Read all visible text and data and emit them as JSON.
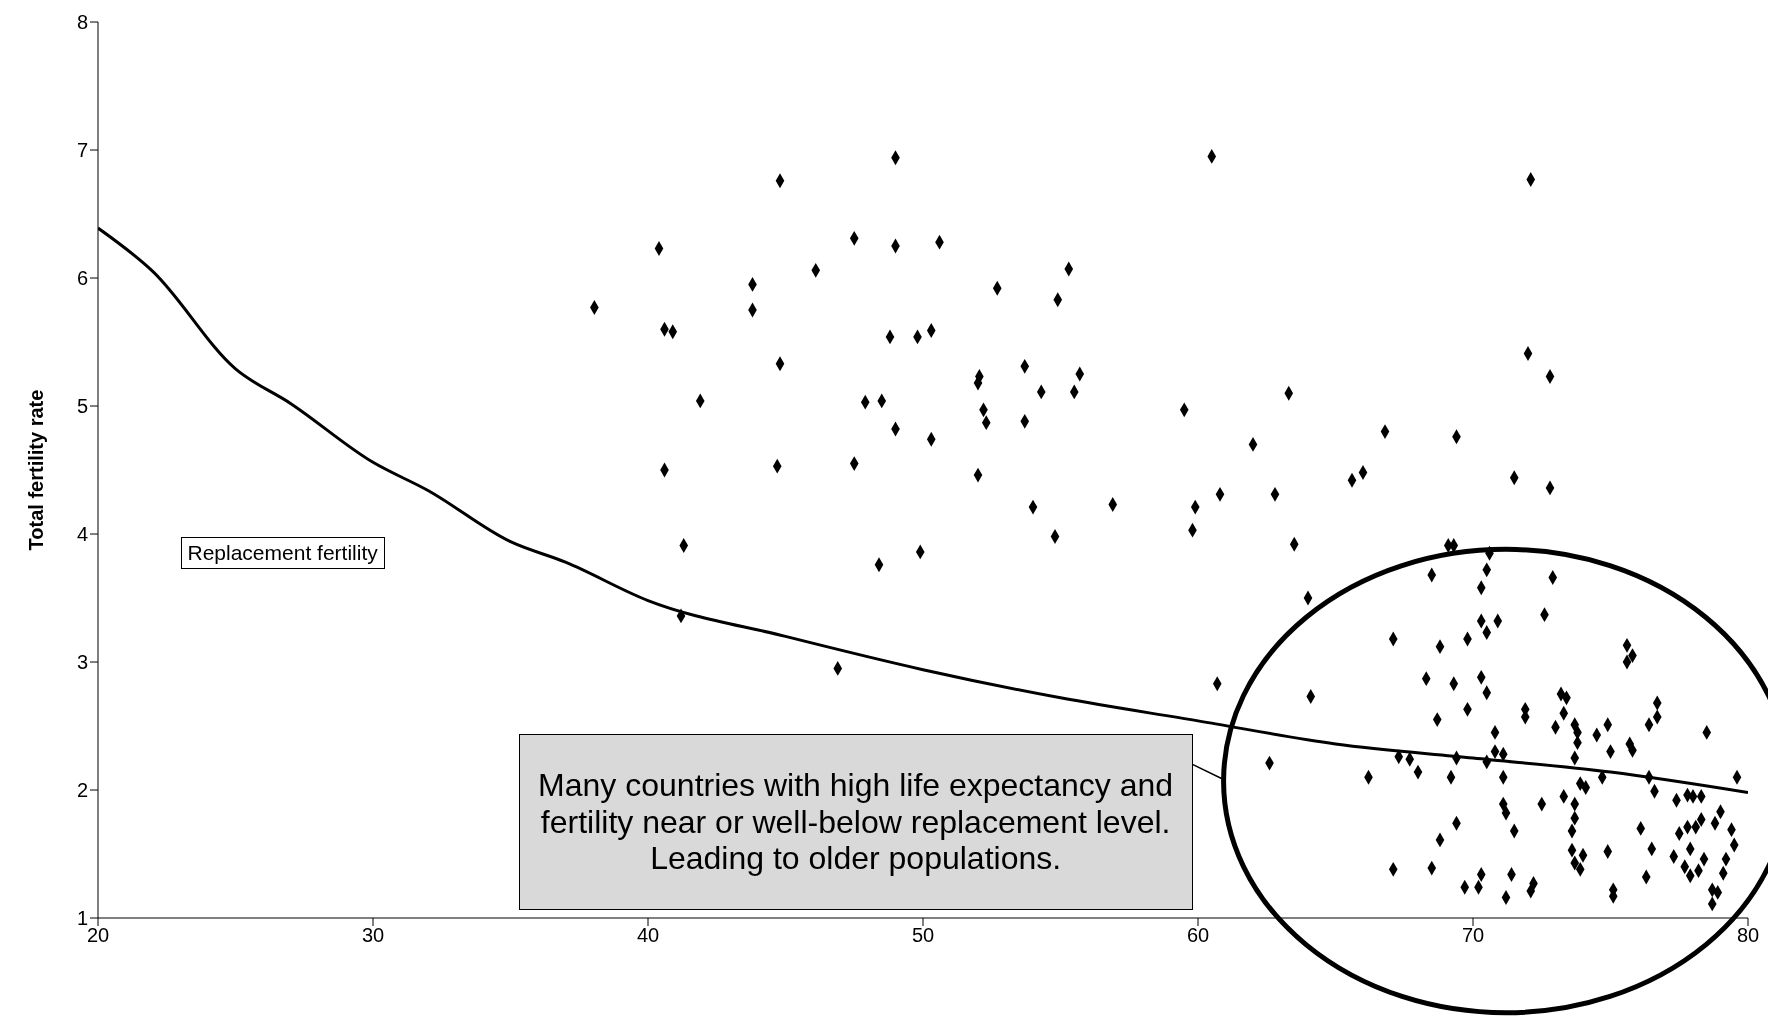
{
  "chart_data": {
    "type": "scatter",
    "ylabel": "Total fertility rate",
    "xlim": [
      20,
      80
    ],
    "xticks": [
      20,
      30,
      40,
      50,
      60,
      70,
      80
    ],
    "ylim": [
      1,
      8
    ],
    "yticks": [
      1,
      2,
      3,
      4,
      5,
      6,
      7,
      8
    ],
    "grid": false,
    "legend": false,
    "annotations": [
      "Many countries with high life expectancy and fertility near or well-below replacement level.  Leading to older populations."
    ],
    "series": [
      {
        "marker": "diamond",
        "color": "#000000",
        "x": [
          38.05,
          40.4,
          40.6,
          40.9,
          40.6,
          41.3,
          41.2,
          41.9,
          43.8,
          43.8,
          44.8,
          44.8,
          44.7,
          46.1,
          47.5,
          47.9,
          48.5,
          47.5,
          48.4,
          49.0,
          49.0,
          48.8,
          49.8,
          50.3,
          49.0,
          50.3,
          50.6,
          49.9,
          46.9,
          52.7,
          52.0,
          52.05,
          52.2,
          52.3,
          52.0,
          53.7,
          53.7,
          54.3,
          54.0,
          55.3,
          54.9,
          55.7,
          55.5,
          54.8,
          56.9,
          60.5,
          59.5,
          59.9,
          59.8,
          60.8,
          60.7,
          62.0,
          62.8,
          63.3,
          63.5,
          64.0,
          62.6,
          64.1,
          65.6,
          66.0,
          66.8,
          66.2,
          72.1,
          72.0,
          72.8,
          71.5,
          72.8,
          69.4,
          72.9,
          72.6,
          69.1,
          69.3,
          70.6,
          68.5,
          70.5,
          70.3,
          67.1,
          70.3,
          70.9,
          69.8,
          70.5,
          68.8,
          75.6,
          75.8,
          75.6,
          68.3,
          69.3,
          70.3,
          70.5,
          69.8,
          68.7,
          73.2,
          73.4,
          71.9,
          71.9,
          73.3,
          73.0,
          73.7,
          73.8,
          73.8,
          74.5,
          74.9,
          76.7,
          76.7,
          76.4,
          78.5,
          75.7,
          75.8,
          75.0,
          73.7,
          70.8,
          70.8,
          71.1,
          67.3,
          67.7,
          68.0,
          69.4,
          69.2,
          70.5,
          71.1,
          73.9,
          74.1,
          74.7,
          76.4,
          76.6,
          79.6,
          73.3,
          73.7,
          72.5,
          77.4,
          77.8,
          78.0,
          78.3,
          79.0,
          71.1,
          71.2,
          73.7,
          78.3,
          78.1,
          77.8,
          77.5,
          78.8,
          79.4,
          76.1,
          71.5,
          69.4,
          68.8,
          73.6,
          79.5,
          77.9,
          76.5,
          74.9,
          73.6,
          74.0,
          73.7,
          73.9,
          77.3,
          78.4,
          79.2,
          77.7,
          77.9,
          78.2,
          79.1,
          67.1,
          68.5,
          70.3,
          71.4,
          72.2,
          72.1,
          69.7,
          70.2,
          71.2,
          75.1,
          75.1,
          76.3,
          78.7,
          78.9,
          78.7
        ],
        "values": [
          5.77,
          6.23,
          5.6,
          5.58,
          4.5,
          3.91,
          3.36,
          5.04,
          5.95,
          5.75,
          6.76,
          5.33,
          4.53,
          6.06,
          6.31,
          5.03,
          5.04,
          4.55,
          3.76,
          6.94,
          6.25,
          5.54,
          5.54,
          5.59,
          4.82,
          4.74,
          6.28,
          3.86,
          2.95,
          5.92,
          5.18,
          5.23,
          4.97,
          4.87,
          4.46,
          5.31,
          4.88,
          5.11,
          4.21,
          6.07,
          5.83,
          5.25,
          5.11,
          3.98,
          4.23,
          6.95,
          4.97,
          4.21,
          4.03,
          4.31,
          2.83,
          4.7,
          4.31,
          5.1,
          3.92,
          3.5,
          2.21,
          2.73,
          4.42,
          4.48,
          4.8,
          2.1,
          6.77,
          5.41,
          5.23,
          4.44,
          4.36,
          4.76,
          3.66,
          3.37,
          3.91,
          3.91,
          3.85,
          3.68,
          3.72,
          3.58,
          3.18,
          3.32,
          3.32,
          3.18,
          3.23,
          3.12,
          3.13,
          3.05,
          3.0,
          2.87,
          2.83,
          2.88,
          2.76,
          2.63,
          2.55,
          2.75,
          2.72,
          2.63,
          2.57,
          2.6,
          2.49,
          2.51,
          2.45,
          2.37,
          2.43,
          2.51,
          2.68,
          2.57,
          2.51,
          2.45,
          2.36,
          2.31,
          2.3,
          2.25,
          2.45,
          2.3,
          2.28,
          2.26,
          2.24,
          2.14,
          2.25,
          2.1,
          2.22,
          2.1,
          2.05,
          2.02,
          2.1,
          2.1,
          1.99,
          2.1,
          1.95,
          1.89,
          1.89,
          1.92,
          1.96,
          1.95,
          1.95,
          1.83,
          1.89,
          1.82,
          1.78,
          1.77,
          1.71,
          1.71,
          1.66,
          1.74,
          1.69,
          1.7,
          1.68,
          1.74,
          1.61,
          1.68,
          1.57,
          1.54,
          1.54,
          1.52,
          1.53,
          1.49,
          1.43,
          1.38,
          1.48,
          1.46,
          1.46,
          1.4,
          1.33,
          1.37,
          1.35,
          1.38,
          1.39,
          1.34,
          1.34,
          1.27,
          1.21,
          1.24,
          1.24,
          1.16,
          1.22,
          1.17,
          1.32,
          1.22,
          1.2,
          1.11
        ]
      },
      {
        "type": "line",
        "marker": "none",
        "name": "Replacement fertility",
        "color": "#000000",
        "x": [
          20,
          22,
          25,
          27,
          30,
          32,
          35,
          37,
          40,
          45,
          50,
          55,
          60,
          65,
          70,
          75,
          80
        ],
        "values": [
          6.39,
          6.05,
          5.29,
          5.02,
          4.56,
          4.34,
          3.94,
          3.78,
          3.48,
          3.2,
          2.94,
          2.72,
          2.54,
          2.36,
          2.25,
          2.14,
          1.98
        ]
      }
    ]
  }
}
